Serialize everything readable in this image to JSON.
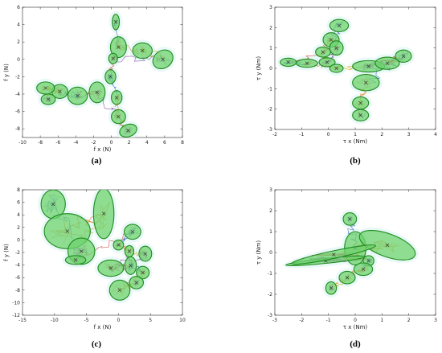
{
  "chart_data": [
    {
      "type": "scatter",
      "panel_label": "(a)",
      "xlabel": "f x (N)",
      "ylabel": "f y (N)",
      "xlim": [
        -10,
        8
      ],
      "ylim": [
        -9,
        6
      ],
      "xticks": [
        -10,
        -8,
        -6,
        -4,
        -2,
        0,
        2,
        4,
        6,
        8
      ],
      "yticks": [
        -8,
        -6,
        -4,
        -2,
        0,
        2,
        4,
        6
      ],
      "ellipse_fill": "#6fd36f",
      "ellipse_edge": "#1e8a1e",
      "center_marker": "#3a3a3a",
      "trajectory_colors": [
        "#2b5fb8",
        "#e07b1f",
        "#d4a017",
        "#7b3fa0",
        "#c0392b"
      ],
      "clusters": [
        {
          "x": 0.5,
          "y": 4.3,
          "rx": 0.4,
          "ry": 0.9,
          "angle": 0
        },
        {
          "x": 0.8,
          "y": 1.4,
          "rx": 0.9,
          "ry": 1.2,
          "angle": 0
        },
        {
          "x": 3.5,
          "y": 1.0,
          "rx": 1.1,
          "ry": 0.9,
          "angle": 0
        },
        {
          "x": 5.8,
          "y": 0.0,
          "rx": 1.2,
          "ry": 1.0,
          "angle": 35
        },
        {
          "x": 0.2,
          "y": 0.1,
          "rx": 0.5,
          "ry": 0.6,
          "angle": 0
        },
        {
          "x": -0.1,
          "y": -2.0,
          "rx": 0.6,
          "ry": 0.8,
          "angle": 0
        },
        {
          "x": 0.6,
          "y": -4.4,
          "rx": 0.6,
          "ry": 0.8,
          "angle": 0
        },
        {
          "x": 0.8,
          "y": -6.6,
          "rx": 0.8,
          "ry": 0.8,
          "angle": 0
        },
        {
          "x": 1.9,
          "y": -8.2,
          "rx": 1.0,
          "ry": 0.7,
          "angle": 20
        },
        {
          "x": -1.6,
          "y": -3.8,
          "rx": 0.9,
          "ry": 1.2,
          "angle": 0
        },
        {
          "x": -3.8,
          "y": -4.2,
          "rx": 1.1,
          "ry": 1.0,
          "angle": 0
        },
        {
          "x": -5.8,
          "y": -3.7,
          "rx": 0.9,
          "ry": 0.8,
          "angle": 0
        },
        {
          "x": -7.4,
          "y": -3.3,
          "rx": 1.0,
          "ry": 0.7,
          "angle": 0
        },
        {
          "x": -7.1,
          "y": -4.6,
          "rx": 0.8,
          "ry": 0.6,
          "angle": 0
        }
      ]
    },
    {
      "type": "scatter",
      "panel_label": "(b)",
      "xlabel": "τ x (Nm)",
      "ylabel": "τ y (Nm)",
      "xlim": [
        -2,
        4
      ],
      "ylim": [
        -3,
        3
      ],
      "xticks": [
        -2,
        -1,
        0,
        1,
        2,
        3,
        4
      ],
      "yticks": [
        -3,
        -2,
        -1,
        0,
        1,
        2,
        3
      ],
      "ellipse_fill": "#6fd36f",
      "ellipse_edge": "#1e8a1e",
      "center_marker": "#3a3a3a",
      "trajectory_colors": [
        "#2b5fb8",
        "#e07b1f",
        "#d4a017",
        "#7b3fa0",
        "#c0392b"
      ],
      "clusters": [
        {
          "x": 0.4,
          "y": 2.1,
          "rx": 0.35,
          "ry": 0.3,
          "angle": 0
        },
        {
          "x": 0.1,
          "y": 1.4,
          "rx": 0.3,
          "ry": 0.35,
          "angle": 0
        },
        {
          "x": -0.2,
          "y": 0.8,
          "rx": 0.28,
          "ry": 0.25,
          "angle": 0
        },
        {
          "x": -0.05,
          "y": 0.3,
          "rx": 0.3,
          "ry": 0.22,
          "angle": 0
        },
        {
          "x": 0.3,
          "y": 1.0,
          "rx": 0.25,
          "ry": 0.35,
          "angle": 0
        },
        {
          "x": -1.5,
          "y": 0.3,
          "rx": 0.3,
          "ry": 0.2,
          "angle": 0
        },
        {
          "x": -0.8,
          "y": 0.25,
          "rx": 0.4,
          "ry": 0.2,
          "angle": 0
        },
        {
          "x": 0.3,
          "y": 0.0,
          "rx": 0.25,
          "ry": 0.2,
          "angle": 0
        },
        {
          "x": 1.5,
          "y": 0.1,
          "rx": 0.6,
          "ry": 0.28,
          "angle": 0
        },
        {
          "x": 2.2,
          "y": 0.25,
          "rx": 0.45,
          "ry": 0.3,
          "angle": 0
        },
        {
          "x": 2.8,
          "y": 0.6,
          "rx": 0.3,
          "ry": 0.3,
          "angle": 0
        },
        {
          "x": 1.4,
          "y": -0.7,
          "rx": 0.5,
          "ry": 0.4,
          "angle": 0
        },
        {
          "x": 1.2,
          "y": -1.7,
          "rx": 0.3,
          "ry": 0.3,
          "angle": 0
        },
        {
          "x": 1.2,
          "y": -2.3,
          "rx": 0.3,
          "ry": 0.28,
          "angle": 0
        }
      ]
    },
    {
      "type": "scatter",
      "panel_label": "(c)",
      "xlabel": "f x (N)",
      "ylabel": "f y (N)",
      "xlim": [
        -15,
        10
      ],
      "ylim": [
        -12,
        8
      ],
      "xticks": [
        -15,
        -10,
        -5,
        0,
        5,
        10
      ],
      "yticks": [
        -12,
        -10,
        -8,
        -6,
        -4,
        -2,
        0,
        2,
        4,
        6,
        8
      ],
      "ellipse_fill": "#6fd36f",
      "ellipse_edge": "#1e8a1e",
      "center_marker": "#3a3a3a",
      "trajectory_colors": [
        "#2b5fb8",
        "#e07b1f",
        "#d4a017",
        "#7b3fa0",
        "#c0392b"
      ],
      "clusters": [
        {
          "x": -10.2,
          "y": 5.7,
          "rx": 1.9,
          "ry": 2.3,
          "angle": 0
        },
        {
          "x": -8.0,
          "y": 1.4,
          "rx": 3.6,
          "ry": 2.8,
          "angle": 0
        },
        {
          "x": -2.3,
          "y": 4.2,
          "rx": 1.6,
          "ry": 4.0,
          "angle": 0
        },
        {
          "x": -5.8,
          "y": -1.8,
          "rx": 2.1,
          "ry": 2.1,
          "angle": 0
        },
        {
          "x": -6.7,
          "y": -3.2,
          "rx": 1.6,
          "ry": 0.7,
          "angle": 0
        },
        {
          "x": 2.2,
          "y": 1.3,
          "rx": 1.3,
          "ry": 1.2,
          "angle": 0
        },
        {
          "x": 0.0,
          "y": -0.8,
          "rx": 0.8,
          "ry": 0.8,
          "angle": 0
        },
        {
          "x": 1.7,
          "y": -1.8,
          "rx": 0.7,
          "ry": 0.9,
          "angle": 0
        },
        {
          "x": 4.2,
          "y": -2.2,
          "rx": 1.0,
          "ry": 1.2,
          "angle": 0
        },
        {
          "x": -1.2,
          "y": -4.5,
          "rx": 2.0,
          "ry": 1.3,
          "angle": 0
        },
        {
          "x": 1.9,
          "y": -4.1,
          "rx": 0.9,
          "ry": 1.4,
          "angle": 0
        },
        {
          "x": 3.8,
          "y": -5.2,
          "rx": 1.0,
          "ry": 1.0,
          "angle": 0
        },
        {
          "x": 0.2,
          "y": -8.0,
          "rx": 1.6,
          "ry": 1.6,
          "angle": 0
        },
        {
          "x": 2.8,
          "y": -6.8,
          "rx": 1.1,
          "ry": 1.0,
          "angle": 0
        }
      ]
    },
    {
      "type": "scatter",
      "panel_label": "(d)",
      "xlabel": "τ x (Nm)",
      "ylabel": "τ y (Nm)",
      "xlim": [
        -3,
        3
      ],
      "ylim": [
        -3,
        3
      ],
      "xticks": [
        -3,
        -2,
        -1,
        0,
        1,
        2,
        3
      ],
      "yticks": [
        -3,
        -2,
        -1,
        0,
        1,
        2,
        3
      ],
      "ellipse_fill": "#6fd36f",
      "ellipse_edge": "#1e8a1e",
      "center_marker": "#3a3a3a",
      "trajectory_colors": [
        "#2b5fb8",
        "#e07b1f",
        "#d4a017",
        "#7b3fa0",
        "#c0392b"
      ],
      "clusters": [
        {
          "x": -0.2,
          "y": 1.6,
          "rx": 0.25,
          "ry": 0.3,
          "angle": 0
        },
        {
          "x": 0.0,
          "y": 0.2,
          "rx": 0.4,
          "ry": 0.8,
          "angle": 0
        },
        {
          "x": 1.2,
          "y": 0.35,
          "rx": 1.1,
          "ry": 0.55,
          "angle": -20
        },
        {
          "x": -1.1,
          "y": -0.4,
          "rx": 1.5,
          "ry": 0.12,
          "angle": 6
        },
        {
          "x": -0.8,
          "y": -0.1,
          "rx": 1.6,
          "ry": 0.18,
          "angle": 12
        },
        {
          "x": 0.5,
          "y": -0.4,
          "rx": 0.2,
          "ry": 0.25,
          "angle": 0
        },
        {
          "x": 0.3,
          "y": -0.8,
          "rx": 0.35,
          "ry": 0.3,
          "angle": 0
        },
        {
          "x": -0.3,
          "y": -1.2,
          "rx": 0.3,
          "ry": 0.3,
          "angle": 0
        },
        {
          "x": -0.9,
          "y": -1.7,
          "rx": 0.2,
          "ry": 0.3,
          "angle": 0
        }
      ]
    }
  ]
}
